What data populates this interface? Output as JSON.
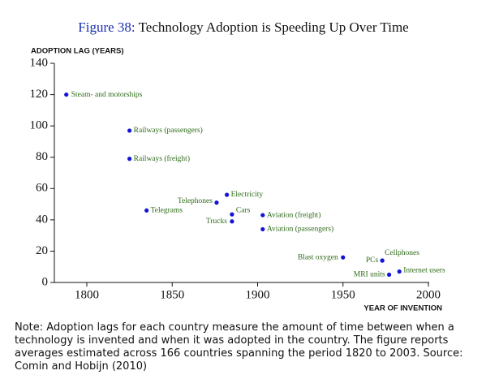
{
  "chart_data": {
    "type": "scatter",
    "figure_label": "Figure 38:",
    "title": "Technology Adoption is Speeding Up Over Time",
    "y_label": "ADOPTION LAG (YEARS)",
    "x_label": "YEAR OF INVENTION",
    "xlim": [
      1781,
      2000
    ],
    "xticks": [
      1800,
      1850,
      1900,
      1950,
      2000
    ],
    "ylim": [
      0,
      140
    ],
    "yticks": [
      0,
      20,
      40,
      60,
      80,
      100,
      120,
      140
    ],
    "color": "#1414d8",
    "label_color": "#2d6a18",
    "series": [
      {
        "name": null,
        "labels": [
          "Steam- and motorships",
          "Railways (passengers)",
          "Railways (freight)",
          "Telegrams",
          "Telephones",
          "Electricity",
          "Cars",
          "Trucks",
          "Aviation (freight)",
          "Aviation (passengers)",
          "Blast oxygen",
          "PCs",
          "Cellphones",
          "MRI units",
          "Internet users"
        ],
        "x": [
          1788,
          1825,
          1825,
          1835,
          1876,
          1882,
          1885,
          1885,
          1903,
          1903,
          1950,
          1973,
          1973,
          1977,
          1983
        ],
        "values": [
          120,
          97,
          79,
          46,
          51,
          56,
          43.5,
          39,
          43,
          34,
          16,
          14,
          14,
          5,
          7
        ]
      }
    ]
  },
  "note": "Note: Adoption lags for each country measure the amount of time between when a technology is invented and when it was adopted in the country. The figure reports averages estimated across 166 countries spanning the period 1820 to 2003. Source: Comin and Hobijn (2010)"
}
